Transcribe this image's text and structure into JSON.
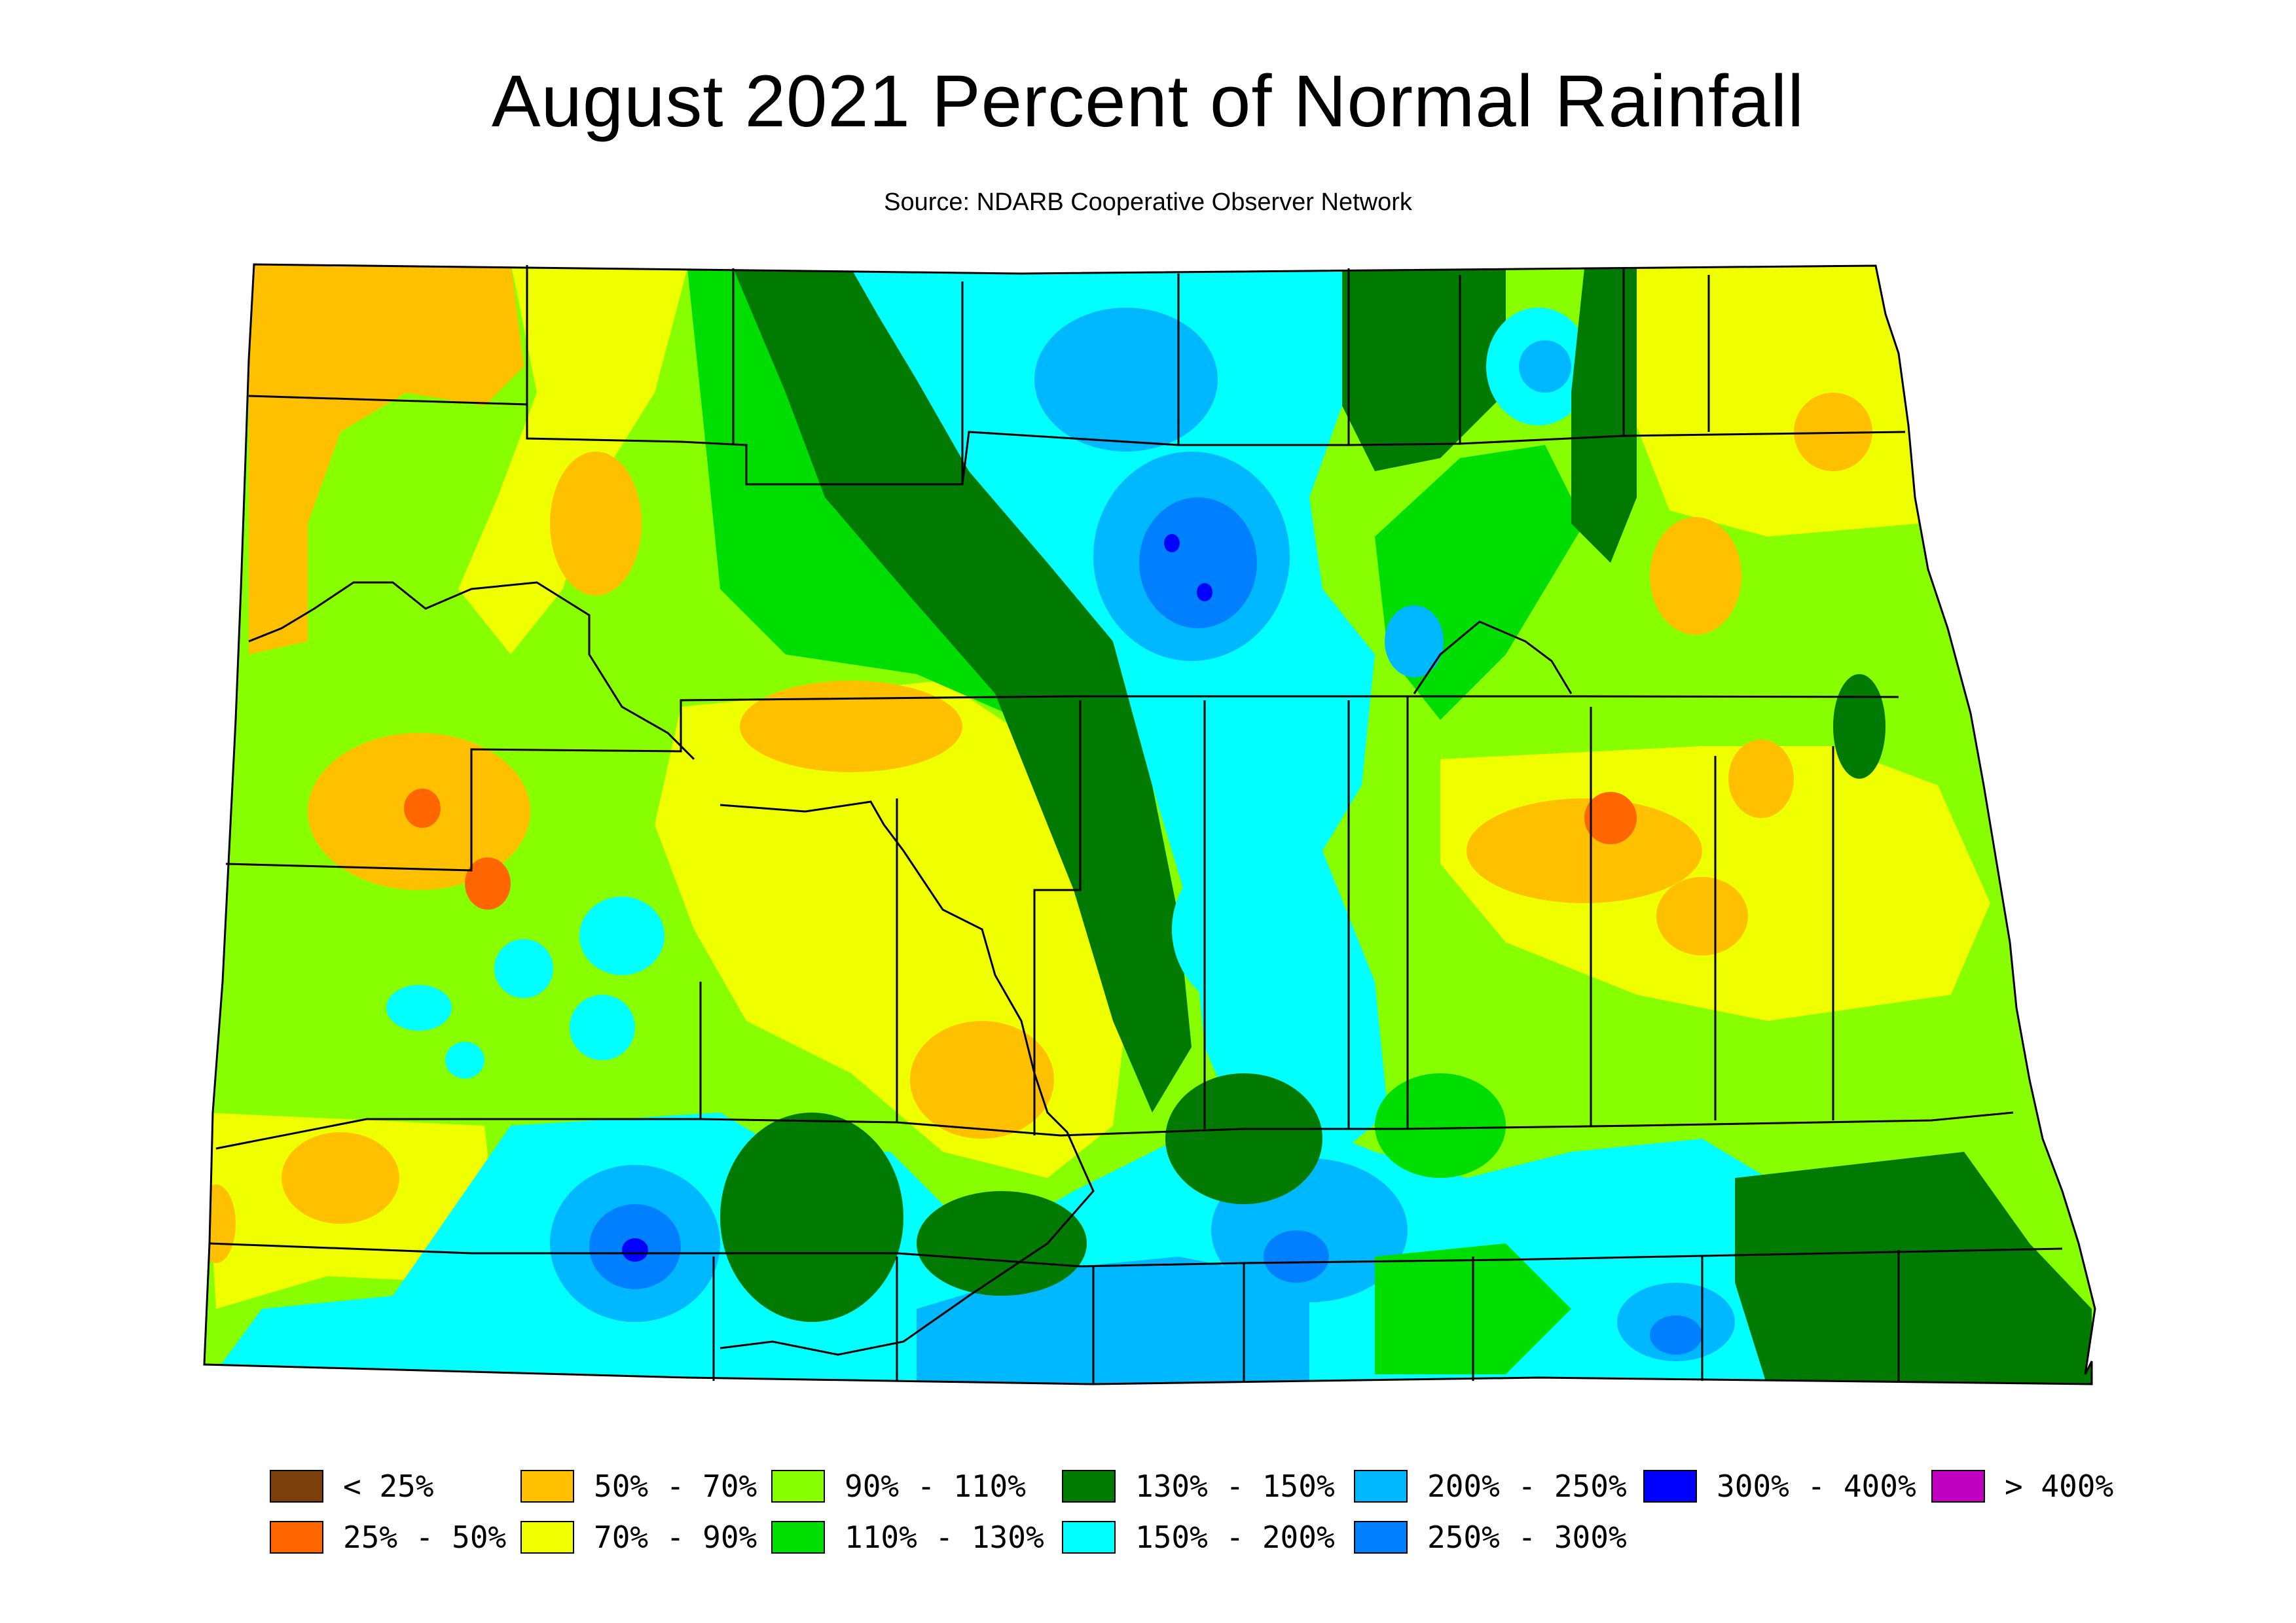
{
  "title": "August 2021 Percent of Normal Rainfall",
  "source": "Source: NDARB Cooperative Observer Network",
  "legend": [
    {
      "label": "< 25%",
      "color": "#7a3f0a"
    },
    {
      "label": "25% - 50%",
      "color": "#ff6600"
    },
    {
      "label": "50% - 70%",
      "color": "#ffc000"
    },
    {
      "label": "70% - 90%",
      "color": "#f0ff00"
    },
    {
      "label": "90% - 110%",
      "color": "#88ff00"
    },
    {
      "label": "110% - 130%",
      "color": "#00dd00"
    },
    {
      "label": "130% - 150%",
      "color": "#007a00"
    },
    {
      "label": "150% - 200%",
      "color": "#00ffff"
    },
    {
      "label": "200% - 250%",
      "color": "#00b8ff"
    },
    {
      "label": "250% - 300%",
      "color": "#0080ff"
    },
    {
      "label": "300% - 400%",
      "color": "#0000ff"
    },
    {
      "label": "> 400%",
      "color": "#c000c0"
    }
  ],
  "colors": {
    "background": "#ffffff",
    "county_lines": "#000000"
  }
}
